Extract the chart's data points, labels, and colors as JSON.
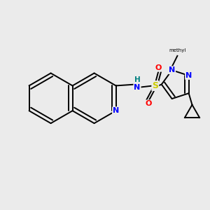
{
  "background_color": "#EBEBEB",
  "bond_color": "#000000",
  "atom_colors": {
    "N": "#0000FF",
    "O": "#FF0000",
    "S": "#CCCC00",
    "H": "#008080",
    "C": "#000000"
  },
  "figsize": [
    3.0,
    3.0
  ],
  "dpi": 100,
  "bond_lw": 1.4,
  "double_sep": 0.03,
  "font_size": 8
}
